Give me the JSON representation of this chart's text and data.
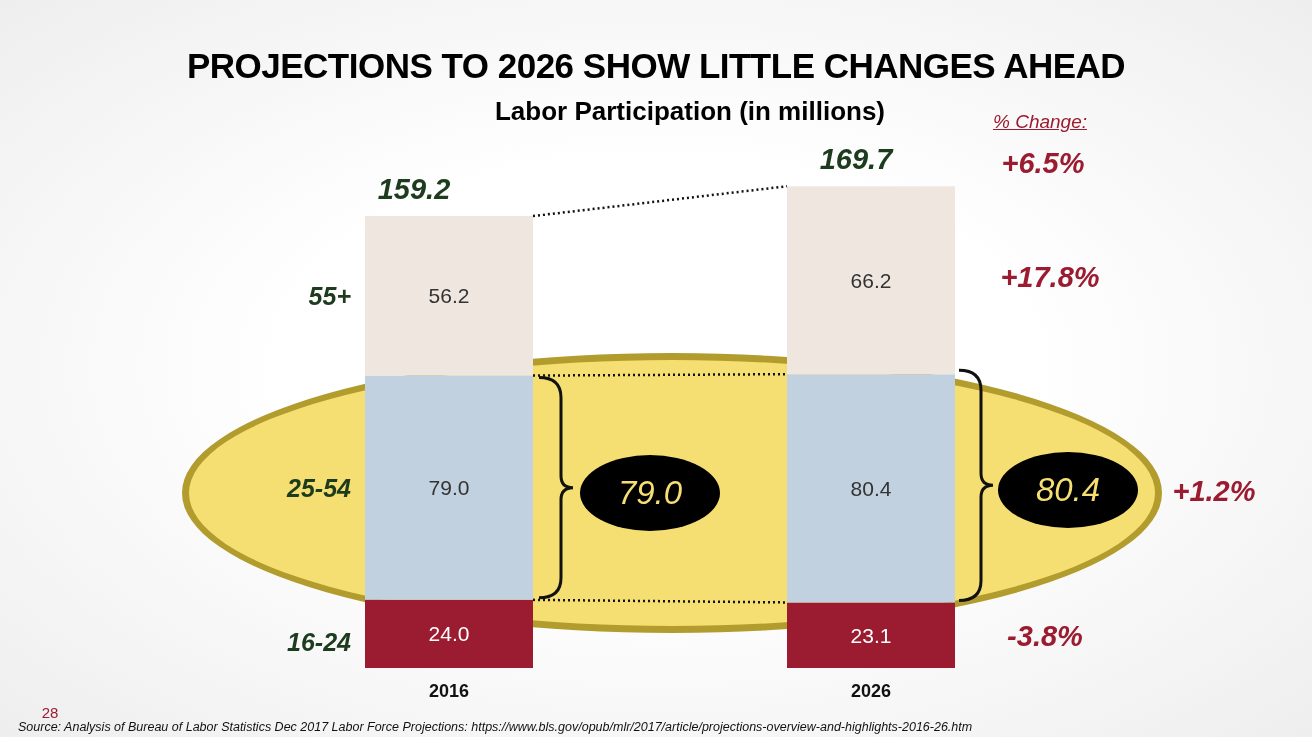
{
  "chart_data": {
    "type": "bar",
    "title": "PROJECTIONS TO 2026 SHOW LITTLE CHANGES AHEAD",
    "subtitle": "Labor Participation (in millions)",
    "categories": [
      "2016",
      "2026"
    ],
    "stacked": true,
    "legend": false,
    "totals": [
      "159.2",
      "169.7"
    ],
    "series": [
      {
        "name": "16-24",
        "color": "#9b1b30",
        "values": [
          24.0,
          23.1
        ],
        "value_labels": [
          "24.0",
          "23.1"
        ]
      },
      {
        "name": "25-54",
        "color": "#c2d1df",
        "values": [
          79.0,
          80.4
        ],
        "value_labels": [
          "79.0",
          "80.4"
        ]
      },
      {
        "name": "55+",
        "color": "#efe7df",
        "values": [
          56.2,
          66.2
        ],
        "value_labels": [
          "56.2",
          "66.2"
        ]
      }
    ],
    "annotations": [
      "% Change:",
      "+6.5%",
      "+17.8%",
      "+1.2%",
      "-3.8%",
      "79.0",
      "80.4",
      "Source: Analysis of Bureau of Labor Statistics Dec 2017 Labor Force Projections: https://www.bls.gov/opub/mlr/2017/article/projections-overview-and-highlights-2016-26.htm",
      "28"
    ]
  }
}
